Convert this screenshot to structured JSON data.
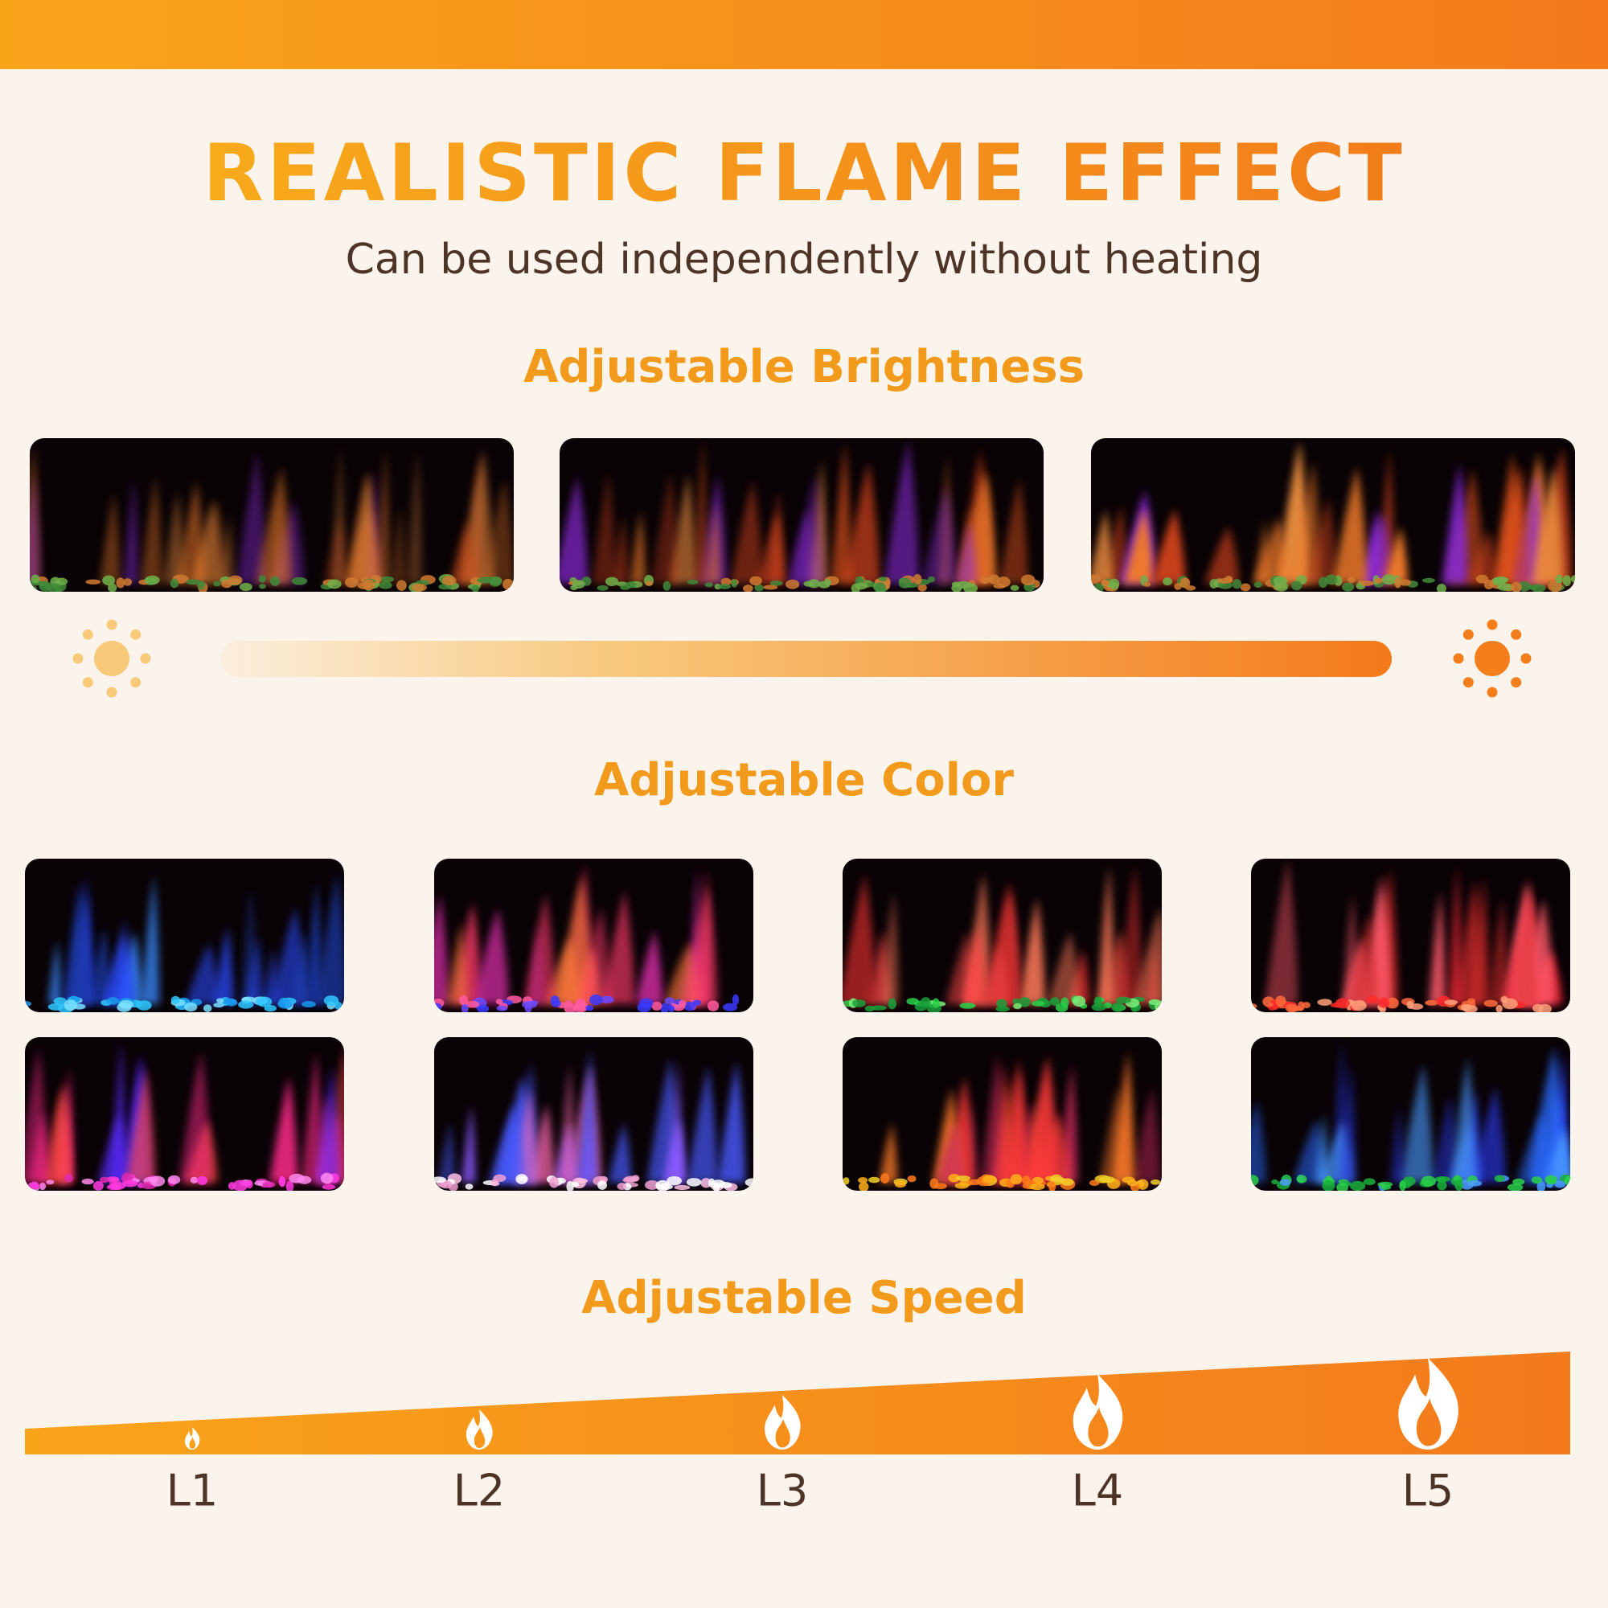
{
  "header": {
    "title": "REALISTIC FLAME EFFECT",
    "subtitle": "Can be used independently without heating"
  },
  "brightness": {
    "heading": "Adjustable Brightness"
  },
  "color": {
    "heading": "Adjustable Color"
  },
  "speed": {
    "heading": "Adjustable Speed",
    "levels": [
      "L1",
      "L2",
      "L3",
      "L4",
      "L5"
    ]
  }
}
